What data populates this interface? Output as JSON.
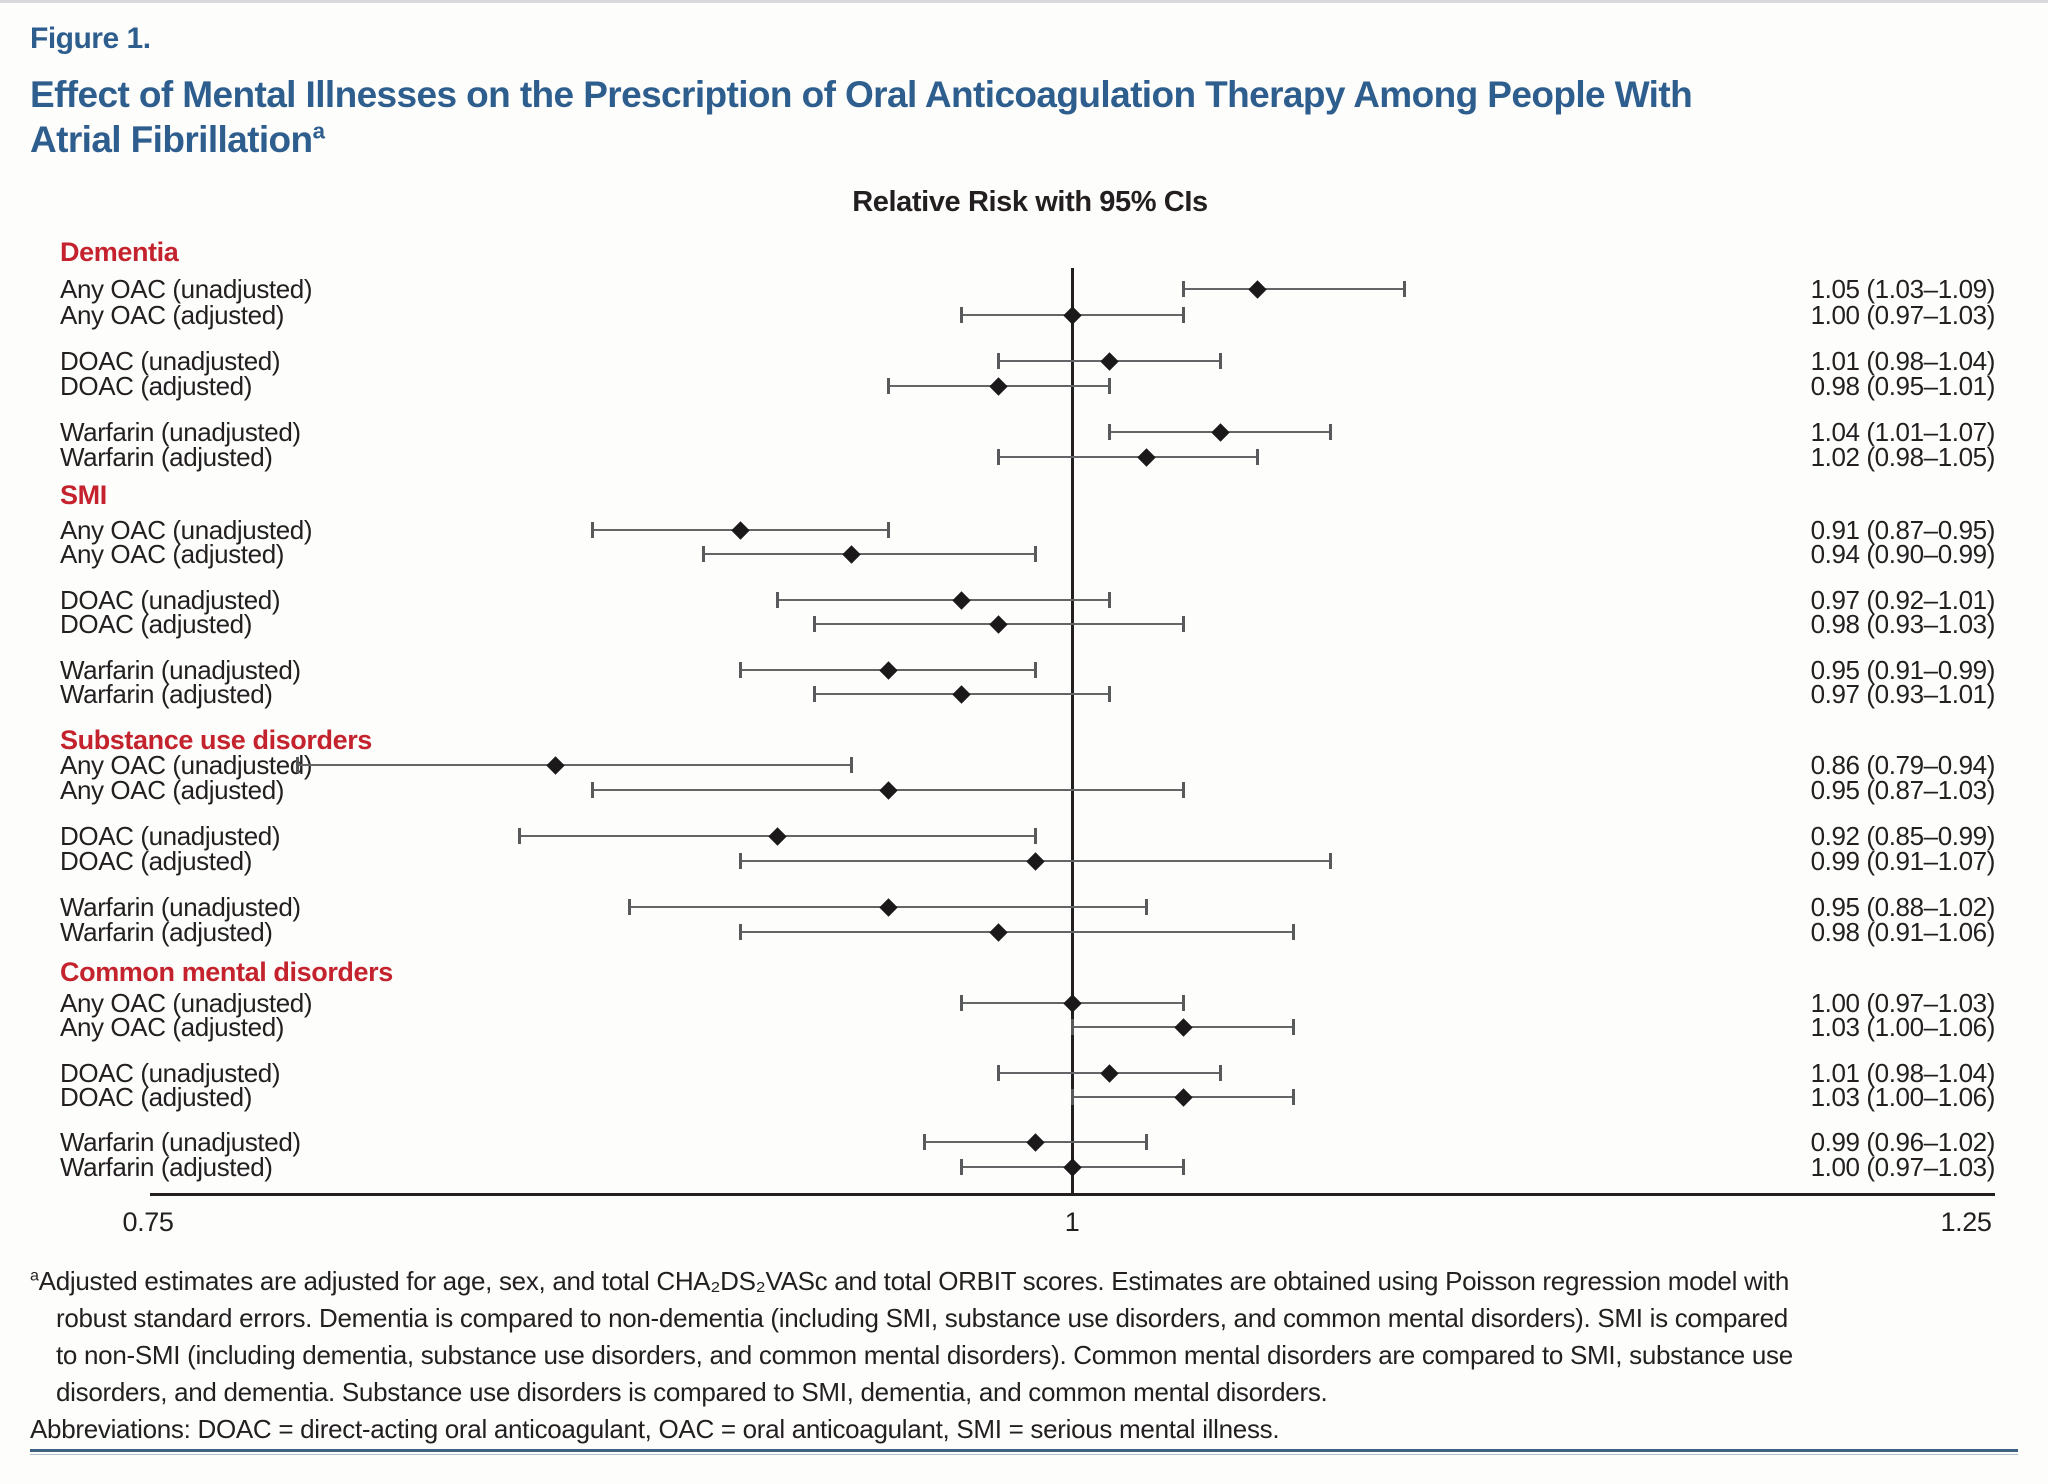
{
  "colors": {
    "accent_blue": "#2e5e8e",
    "accent_red": "#c4232e",
    "text_ink": "#231f20",
    "ci_line_gray": "#646567",
    "marker_black": "#1c191a"
  },
  "figure": {
    "label": "Figure 1.",
    "title_line1": "Effect of Mental Illnesses on the Prescription of Oral Anticoagulation Therapy Among People With",
    "title_line2": "Atrial Fibrillation",
    "title_superscript": "a"
  },
  "chart_data": {
    "type": "forest",
    "title": "Relative Risk with 95% CIs",
    "x_axis": {
      "scale": "linear",
      "range": [
        0.75,
        1.25
      ],
      "tick_values": [
        0.75,
        1,
        1.25
      ],
      "tick_labels": [
        "0.75",
        "1",
        "1.25"
      ],
      "reference_line": 1
    },
    "value_format": "RR (95% CI)",
    "groups": [
      {
        "name": "Dementia",
        "rows": [
          {
            "label": "Any OAC (unadjusted)",
            "rr": 1.05,
            "lo": 1.03,
            "hi": 1.09,
            "display": "1.05 (1.03–1.09)"
          },
          {
            "label": "Any OAC (adjusted)",
            "rr": 1.0,
            "lo": 0.97,
            "hi": 1.03,
            "display": "1.00 (0.97–1.03)"
          },
          {
            "label": "DOAC (unadjusted)",
            "rr": 1.01,
            "lo": 0.98,
            "hi": 1.04,
            "display": "1.01 (0.98–1.04)"
          },
          {
            "label": "DOAC (adjusted)",
            "rr": 0.98,
            "lo": 0.95,
            "hi": 1.01,
            "display": "0.98 (0.95–1.01)"
          },
          {
            "label": "Warfarin (unadjusted)",
            "rr": 1.04,
            "lo": 1.01,
            "hi": 1.07,
            "display": "1.04 (1.01–1.07)"
          },
          {
            "label": "Warfarin (adjusted)",
            "rr": 1.02,
            "lo": 0.98,
            "hi": 1.05,
            "display": "1.02 (0.98–1.05)"
          }
        ]
      },
      {
        "name": "SMI",
        "rows": [
          {
            "label": "Any OAC (unadjusted)",
            "rr": 0.91,
            "lo": 0.87,
            "hi": 0.95,
            "display": "0.91 (0.87–0.95)"
          },
          {
            "label": "Any OAC (adjusted)",
            "rr": 0.94,
            "lo": 0.9,
            "hi": 0.99,
            "display": "0.94 (0.90–0.99)"
          },
          {
            "label": "DOAC (unadjusted)",
            "rr": 0.97,
            "lo": 0.92,
            "hi": 1.01,
            "display": "0.97 (0.92–1.01)"
          },
          {
            "label": "DOAC (adjusted)",
            "rr": 0.98,
            "lo": 0.93,
            "hi": 1.03,
            "display": "0.98 (0.93–1.03)"
          },
          {
            "label": "Warfarin (unadjusted)",
            "rr": 0.95,
            "lo": 0.91,
            "hi": 0.99,
            "display": "0.95 (0.91–0.99)"
          },
          {
            "label": "Warfarin (adjusted)",
            "rr": 0.97,
            "lo": 0.93,
            "hi": 1.01,
            "display": "0.97 (0.93–1.01)"
          }
        ]
      },
      {
        "name": "Substance use disorders",
        "rows": [
          {
            "label": "Any OAC (unadjusted)",
            "rr": 0.86,
            "lo": 0.79,
            "hi": 0.94,
            "display": "0.86 (0.79–0.94)"
          },
          {
            "label": "Any OAC (adjusted)",
            "rr": 0.95,
            "lo": 0.87,
            "hi": 1.03,
            "display": "0.95 (0.87–1.03)"
          },
          {
            "label": "DOAC (unadjusted)",
            "rr": 0.92,
            "lo": 0.85,
            "hi": 0.99,
            "display": "0.92 (0.85–0.99)"
          },
          {
            "label": "DOAC (adjusted)",
            "rr": 0.99,
            "lo": 0.91,
            "hi": 1.07,
            "display": "0.99 (0.91–1.07)"
          },
          {
            "label": "Warfarin (unadjusted)",
            "rr": 0.95,
            "lo": 0.88,
            "hi": 1.02,
            "display": "0.95 (0.88–1.02)"
          },
          {
            "label": "Warfarin (adjusted)",
            "rr": 0.98,
            "lo": 0.91,
            "hi": 1.06,
            "display": "0.98 (0.91–1.06)"
          }
        ]
      },
      {
        "name": "Common mental disorders",
        "rows": [
          {
            "label": "Any OAC (unadjusted)",
            "rr": 1.0,
            "lo": 0.97,
            "hi": 1.03,
            "display": "1.00 (0.97–1.03)"
          },
          {
            "label": "Any OAC (adjusted)",
            "rr": 1.03,
            "lo": 1.0,
            "hi": 1.06,
            "display": "1.03 (1.00–1.06)"
          },
          {
            "label": "DOAC (unadjusted)",
            "rr": 1.01,
            "lo": 0.98,
            "hi": 1.04,
            "display": "1.01 (0.98–1.04)"
          },
          {
            "label": "DOAC (adjusted)",
            "rr": 1.03,
            "lo": 1.0,
            "hi": 1.06,
            "display": "1.03 (1.00–1.06)"
          },
          {
            "label": "Warfarin (unadjusted)",
            "rr": 0.99,
            "lo": 0.96,
            "hi": 1.02,
            "display": "0.99 (0.96–1.02)"
          },
          {
            "label": "Warfarin (adjusted)",
            "rr": 1.0,
            "lo": 0.97,
            "hi": 1.03,
            "display": "1.00 (0.97–1.03)"
          }
        ]
      }
    ]
  },
  "footnote": {
    "marker": "a",
    "lines": [
      "Adjusted estimates are adjusted for age, sex, and total CHA₂DS₂VASc and total ORBIT scores. Estimates are obtained using Poisson regression model with",
      "robust standard errors. Dementia is compared to non-dementia (including SMI, substance use disorders, and common mental disorders). SMI is compared",
      "to non-SMI (including dementia, substance use disorders, and common mental disorders). Common mental disorders are compared to SMI, substance use",
      "disorders, and dementia. Substance use disorders is compared to SMI, dementia, and common mental disorders."
    ],
    "abbreviations": "Abbreviations: DOAC = direct-acting oral anticoagulant, OAC = oral anticoagulant, SMI = serious mental illness."
  }
}
